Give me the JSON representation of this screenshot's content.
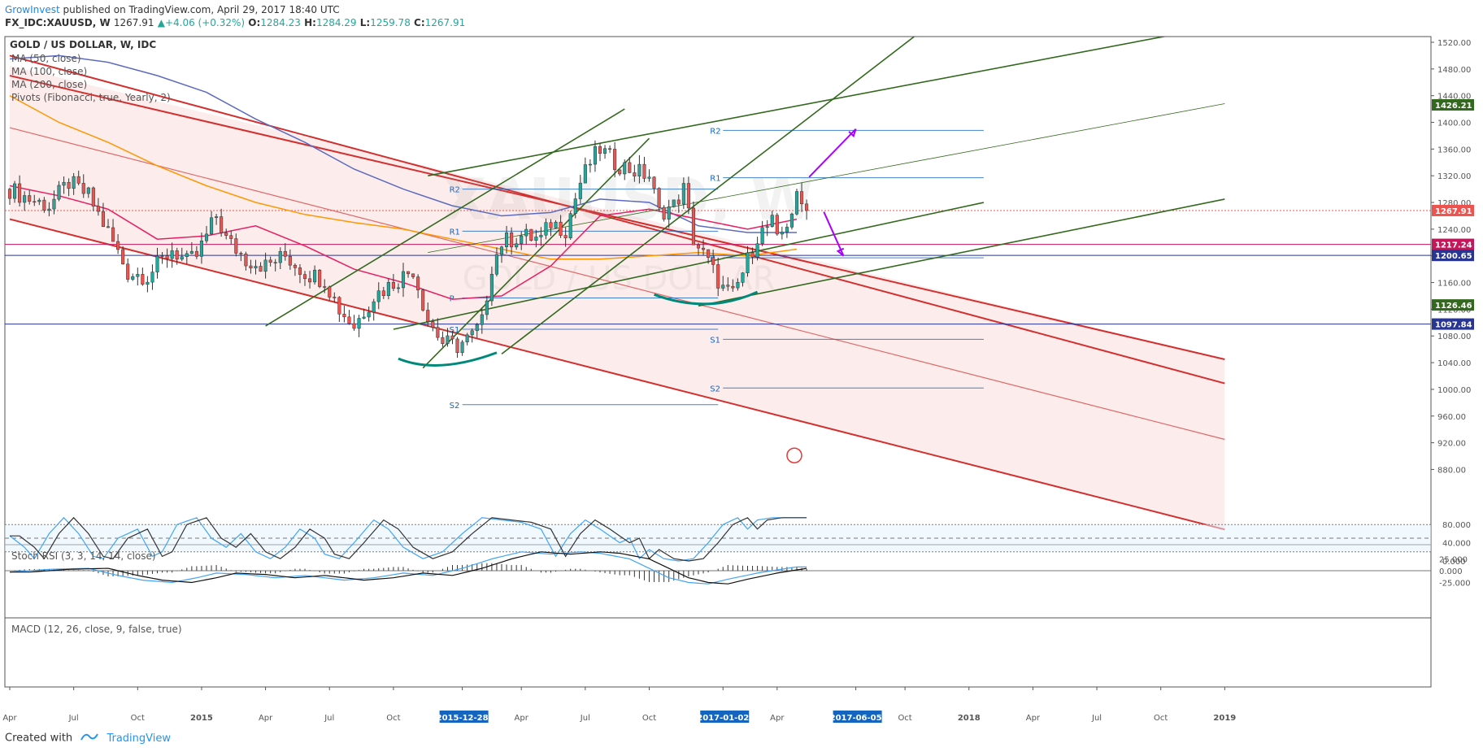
{
  "header": {
    "publisher": "GrowInvest",
    "published_text": "published on TradingView.com, April 29, 2017 18:40 UTC",
    "symbol_line": "FX_IDC:XAUUSD, W",
    "last": "1267.91",
    "change": "+4.06 (+0.32%)",
    "o_label": "O:",
    "o_value": "1284.23",
    "h_label": "H:",
    "h_value": "1284.29",
    "l_label": "L:",
    "l_value": "1259.78",
    "c_label": "C:",
    "c_value": "1267.91"
  },
  "legend": {
    "title": "GOLD / US DOLLAR, W, IDC",
    "items": [
      "MA (50, close)",
      "MA (100, close)",
      "MA (200, close)",
      "Pivots (Fibonacci, true, Yearly, 2)"
    ]
  },
  "watermark": {
    "symbol": "XAUUSD, W",
    "name": "GOLD / US DOLLAR"
  },
  "stoch_label": "Stoch RSI (3, 3, 14, 14, close)",
  "macd_label": "MACD (12, 26, close, 9, false, true)",
  "footer": {
    "created": "Created with",
    "brand": "TradingView"
  },
  "colors": {
    "up": "#26a69a",
    "down": "#ef5350",
    "channel": "#d32f2f",
    "channel_fill": "#fbe9e7",
    "trend": "#33691e",
    "ma50": "#e91e63",
    "ma100": "#5c6bc0",
    "ma200": "#ff9800",
    "pivot": "#1565c0",
    "arrow": "#aa00ff",
    "stoch_k": "#42a5f5",
    "stoch_d": "#333333"
  },
  "chart_data": {
    "type": "candlestick",
    "title": "GOLD / US DOLLAR, W, IDC",
    "price_axis": {
      "ylim": [
        880,
        1530
      ],
      "ticks": [
        "1520.00",
        "1480.00",
        "1440.00",
        "1400.00",
        "1360.00",
        "1320.00",
        "1280.00",
        "1240.00",
        "1200.00",
        "1160.00",
        "1120.00",
        "1080.00",
        "1040.00",
        "1000.00",
        "960.00",
        "920.00",
        "880.00"
      ]
    },
    "price_labels": [
      {
        "text": "1426.21",
        "value": 1426.21,
        "color": "#33691e"
      },
      {
        "text": "1267.91",
        "value": 1267.91,
        "color": "#ef5350"
      },
      {
        "text": "1217.24",
        "value": 1217.24,
        "color": "#c2185b"
      },
      {
        "text": "1200.65",
        "value": 1200.65,
        "color": "#283593"
      },
      {
        "text": "1126.46",
        "value": 1126.46,
        "color": "#33691e"
      },
      {
        "text": "1097.84",
        "value": 1097.84,
        "color": "#283593"
      }
    ],
    "time_axis": {
      "labels": [
        "Apr",
        "Jul",
        "Oct",
        "2015",
        "Apr",
        "Jul",
        "Oct",
        "2015-12-28",
        "Apr",
        "Jul",
        "Oct",
        "2017-01-02",
        "Apr",
        "2017-06-05",
        "Oct",
        "2018",
        "Apr",
        "Jul",
        "Oct",
        "2019"
      ],
      "label_weeks": [
        0,
        13,
        26,
        39,
        52,
        65,
        78,
        92,
        104,
        117,
        130,
        145,
        156,
        172,
        182,
        195,
        208,
        221,
        234,
        247
      ],
      "highlighted": [
        "2015-12-28",
        "2017-01-02",
        "2017-06-05"
      ]
    },
    "stoch_axis": {
      "ticks": [
        "80.000",
        "40.000",
        "0.000"
      ],
      "ylim": [
        0,
        100
      ]
    },
    "macd_axis": {
      "ticks": [
        "25.000",
        "0.000",
        "-25.000"
      ],
      "ylim": [
        -35,
        35
      ]
    },
    "pivots_2016": {
      "R2": 1300,
      "R1": 1237,
      "P": 1137,
      "S1": 1090,
      "S2": 977
    },
    "pivots_2017": {
      "R2": 1388,
      "R1": 1317,
      "P": 1197,
      "S1": 1075,
      "S2": 1002
    },
    "price_path": [
      [
        0,
        1300
      ],
      [
        4,
        1285
      ],
      [
        8,
        1275
      ],
      [
        12,
        1310
      ],
      [
        16,
        1290
      ],
      [
        20,
        1235
      ],
      [
        24,
        1175
      ],
      [
        28,
        1170
      ],
      [
        33,
        1210
      ],
      [
        36,
        1190
      ],
      [
        38,
        1200
      ],
      [
        42,
        1260
      ],
      [
        44,
        1225
      ],
      [
        48,
        1195
      ],
      [
        52,
        1185
      ],
      [
        56,
        1200
      ],
      [
        60,
        1175
      ],
      [
        64,
        1165
      ],
      [
        67,
        1120
      ],
      [
        70,
        1095
      ],
      [
        74,
        1140
      ],
      [
        78,
        1160
      ],
      [
        82,
        1180
      ],
      [
        85,
        1105
      ],
      [
        88,
        1070
      ],
      [
        91,
        1065
      ],
      [
        94,
        1080
      ],
      [
        96,
        1100
      ],
      [
        98,
        1185
      ],
      [
        100,
        1220
      ],
      [
        104,
        1230
      ],
      [
        108,
        1225
      ],
      [
        110,
        1250
      ],
      [
        113,
        1240
      ],
      [
        116,
        1310
      ],
      [
        118,
        1340
      ],
      [
        120,
        1360
      ],
      [
        123,
        1340
      ],
      [
        126,
        1330
      ],
      [
        130,
        1320
      ],
      [
        132,
        1265
      ],
      [
        135,
        1275
      ],
      [
        137,
        1300
      ],
      [
        139,
        1225
      ],
      [
        142,
        1190
      ],
      [
        145,
        1150
      ],
      [
        147,
        1140
      ],
      [
        149,
        1175
      ],
      [
        152,
        1230
      ],
      [
        155,
        1250
      ],
      [
        156,
        1220
      ],
      [
        158,
        1250
      ],
      [
        160,
        1285
      ],
      [
        162,
        1267.91
      ]
    ],
    "stoch_path": [
      [
        0,
        55
      ],
      [
        3,
        30
      ],
      [
        5,
        5
      ],
      [
        8,
        60
      ],
      [
        11,
        95
      ],
      [
        14,
        60
      ],
      [
        17,
        10
      ],
      [
        19,
        5
      ],
      [
        22,
        50
      ],
      [
        26,
        70
      ],
      [
        29,
        10
      ],
      [
        31,
        20
      ],
      [
        34,
        80
      ],
      [
        38,
        95
      ],
      [
        41,
        50
      ],
      [
        44,
        30
      ],
      [
        47,
        60
      ],
      [
        50,
        20
      ],
      [
        53,
        5
      ],
      [
        56,
        30
      ],
      [
        59,
        70
      ],
      [
        62,
        50
      ],
      [
        64,
        15
      ],
      [
        67,
        5
      ],
      [
        70,
        40
      ],
      [
        74,
        90
      ],
      [
        77,
        70
      ],
      [
        80,
        30
      ],
      [
        84,
        5
      ],
      [
        88,
        20
      ],
      [
        92,
        60
      ],
      [
        96,
        95
      ],
      [
        100,
        90
      ],
      [
        104,
        85
      ],
      [
        108,
        70
      ],
      [
        111,
        10
      ],
      [
        114,
        60
      ],
      [
        117,
        90
      ],
      [
        120,
        70
      ],
      [
        124,
        40
      ],
      [
        126,
        50
      ],
      [
        128,
        5
      ],
      [
        130,
        25
      ],
      [
        133,
        5
      ],
      [
        136,
        0
      ],
      [
        139,
        5
      ],
      [
        142,
        40
      ],
      [
        145,
        80
      ],
      [
        148,
        95
      ],
      [
        150,
        70
      ],
      [
        152,
        90
      ],
      [
        155,
        95
      ]
    ],
    "macd_path": [
      [
        0,
        -3
      ],
      [
        8,
        3
      ],
      [
        16,
        5
      ],
      [
        22,
        -10
      ],
      [
        27,
        -20
      ],
      [
        33,
        -25
      ],
      [
        38,
        -15
      ],
      [
        42,
        -5
      ],
      [
        48,
        -8
      ],
      [
        54,
        -15
      ],
      [
        60,
        -10
      ],
      [
        68,
        -20
      ],
      [
        74,
        -15
      ],
      [
        80,
        -5
      ],
      [
        86,
        -10
      ],
      [
        92,
        5
      ],
      [
        98,
        25
      ],
      [
        104,
        40
      ],
      [
        110,
        35
      ],
      [
        116,
        40
      ],
      [
        120,
        37
      ],
      [
        126,
        25
      ],
      [
        130,
        5
      ],
      [
        134,
        -15
      ],
      [
        138,
        -25
      ],
      [
        142,
        -28
      ],
      [
        146,
        -18
      ],
      [
        152,
        -5
      ],
      [
        158,
        5
      ],
      [
        160,
        8
      ]
    ]
  }
}
